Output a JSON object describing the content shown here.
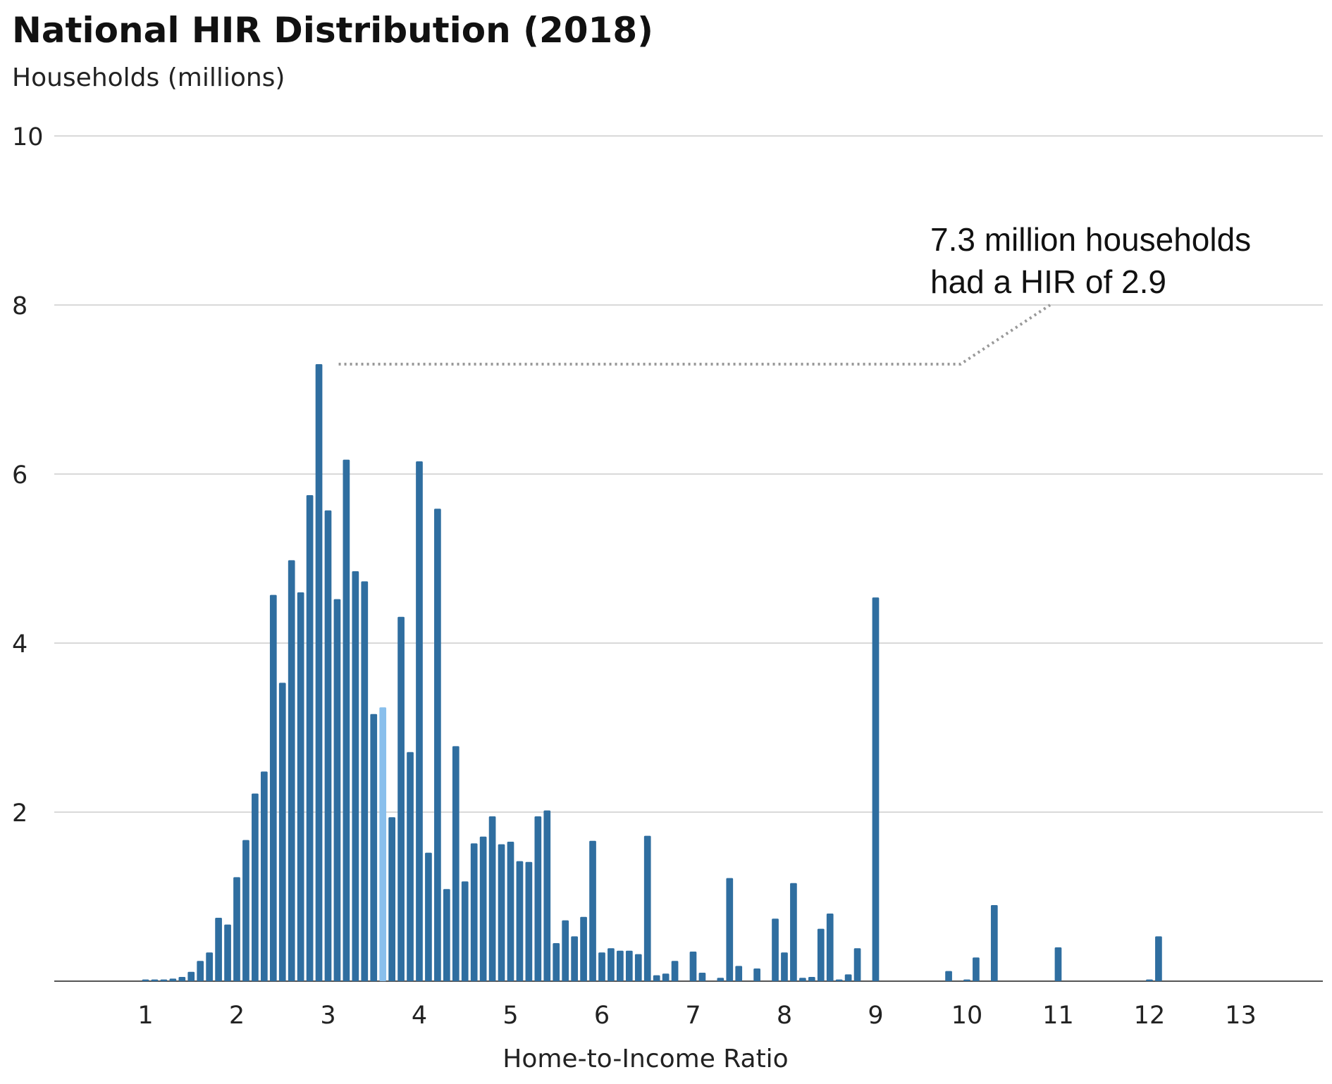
{
  "chart_data": {
    "type": "bar",
    "title": "National HIR Distribution (2018)",
    "subtitle": "Households (millions)",
    "xlabel": "Home-to-Income Ratio",
    "ylabel": "Households (millions)",
    "ylim": [
      0,
      10
    ],
    "xlim": [
      0,
      13.9
    ],
    "y_ticks": [
      10,
      8,
      6,
      4,
      2
    ],
    "x_ticks": [
      1,
      2,
      3,
      4,
      5,
      6,
      7,
      8,
      9,
      10,
      11,
      12,
      13
    ],
    "grid": true,
    "bar_width": 0.075,
    "colors": {
      "bar": "#2f6ea0",
      "highlight": "#89bfec",
      "grid": "#d9d9d9",
      "axis": "#555555",
      "leader": "#999999"
    },
    "annotation": {
      "lines": [
        "7.3 million households",
        "had a HIR of 2.9"
      ],
      "points_to": {
        "x": 2.9,
        "y": 7.3
      }
    },
    "series": [
      {
        "x": [
          1.0,
          1.1,
          1.2,
          1.3,
          1.4,
          1.5,
          1.6,
          1.7,
          1.8,
          1.9,
          2.0,
          2.1,
          2.2,
          2.3,
          2.4,
          2.5,
          2.6,
          2.7,
          2.8,
          2.9,
          3.0,
          3.1,
          3.2,
          3.3,
          3.4,
          3.5,
          3.6,
          3.7,
          3.8,
          3.9,
          4.0,
          4.1,
          4.2,
          4.3,
          4.4,
          4.5,
          4.6,
          4.7,
          4.8,
          4.9,
          5.0,
          5.1,
          5.2,
          5.3,
          5.4,
          5.5,
          5.6,
          5.7,
          5.8,
          5.9,
          6.0,
          6.1,
          6.2,
          6.3,
          6.4,
          6.5,
          6.6,
          6.7,
          6.8,
          6.9,
          7.0,
          7.1,
          7.2,
          7.3,
          7.4,
          7.5,
          7.6,
          7.7,
          7.8,
          7.9,
          8.0,
          8.1,
          8.2,
          8.3,
          8.4,
          8.5,
          8.6,
          8.7,
          8.8,
          8.9,
          9.0,
          9.1,
          9.2,
          9.3,
          9.4,
          9.5,
          9.6,
          9.7,
          9.8,
          9.9,
          10.0,
          10.1,
          10.2,
          10.3,
          10.4,
          10.5,
          10.6,
          10.7,
          10.8,
          10.9,
          11.0,
          11.1,
          11.2,
          11.3,
          11.4,
          11.5,
          11.6,
          11.7,
          11.8,
          11.9,
          12.0,
          12.1,
          12.2,
          12.3,
          12.4,
          12.5,
          12.6,
          12.7,
          12.8,
          12.9,
          13.0,
          13.1,
          13.2,
          13.3,
          13.4,
          13.5,
          13.6,
          13.7,
          13.8
        ],
        "values": [
          0.02,
          0.02,
          0.02,
          0.03,
          0.05,
          0.11,
          0.24,
          0.34,
          0.75,
          0.67,
          1.23,
          1.67,
          2.22,
          2.48,
          4.57,
          3.53,
          4.98,
          4.6,
          5.75,
          7.3,
          5.57,
          4.52,
          6.17,
          4.85,
          4.73,
          3.16,
          3.24,
          1.94,
          4.31,
          2.71,
          6.15,
          1.52,
          5.59,
          1.09,
          2.78,
          1.18,
          1.63,
          1.71,
          1.95,
          1.62,
          1.65,
          1.42,
          1.41,
          1.95,
          2.02,
          0.45,
          0.72,
          0.53,
          0.76,
          1.66,
          0.34,
          0.39,
          0.36,
          0.36,
          0.32,
          1.72,
          0.07,
          0.09,
          0.24,
          0.0,
          0.35,
          0.1,
          0.0,
          0.04,
          1.22,
          0.18,
          0.0,
          0.15,
          0.0,
          0.74,
          0.34,
          1.16,
          0.04,
          0.05,
          0.62,
          0.8,
          0.02,
          0.08,
          0.39,
          0.0,
          4.54,
          0.0,
          0.0,
          0.0,
          0.0,
          0.0,
          0.0,
          0.0,
          0.12,
          0.0,
          0.02,
          0.28,
          0.0,
          0.9,
          0.0,
          0.0,
          0.0,
          0.0,
          0.0,
          0.0,
          0.4,
          0.0,
          0.0,
          0.0,
          0.0,
          0.0,
          0.0,
          0.0,
          0.0,
          0.0,
          0.02,
          0.53,
          0.0,
          0.0,
          0.0,
          0.0,
          0.0,
          0.0,
          0.0,
          0.0,
          0.0,
          0.0,
          0.0,
          0.0,
          0.0,
          0.0,
          0.0,
          0.0,
          0.0
        ],
        "highlight_index": 26
      }
    ]
  }
}
